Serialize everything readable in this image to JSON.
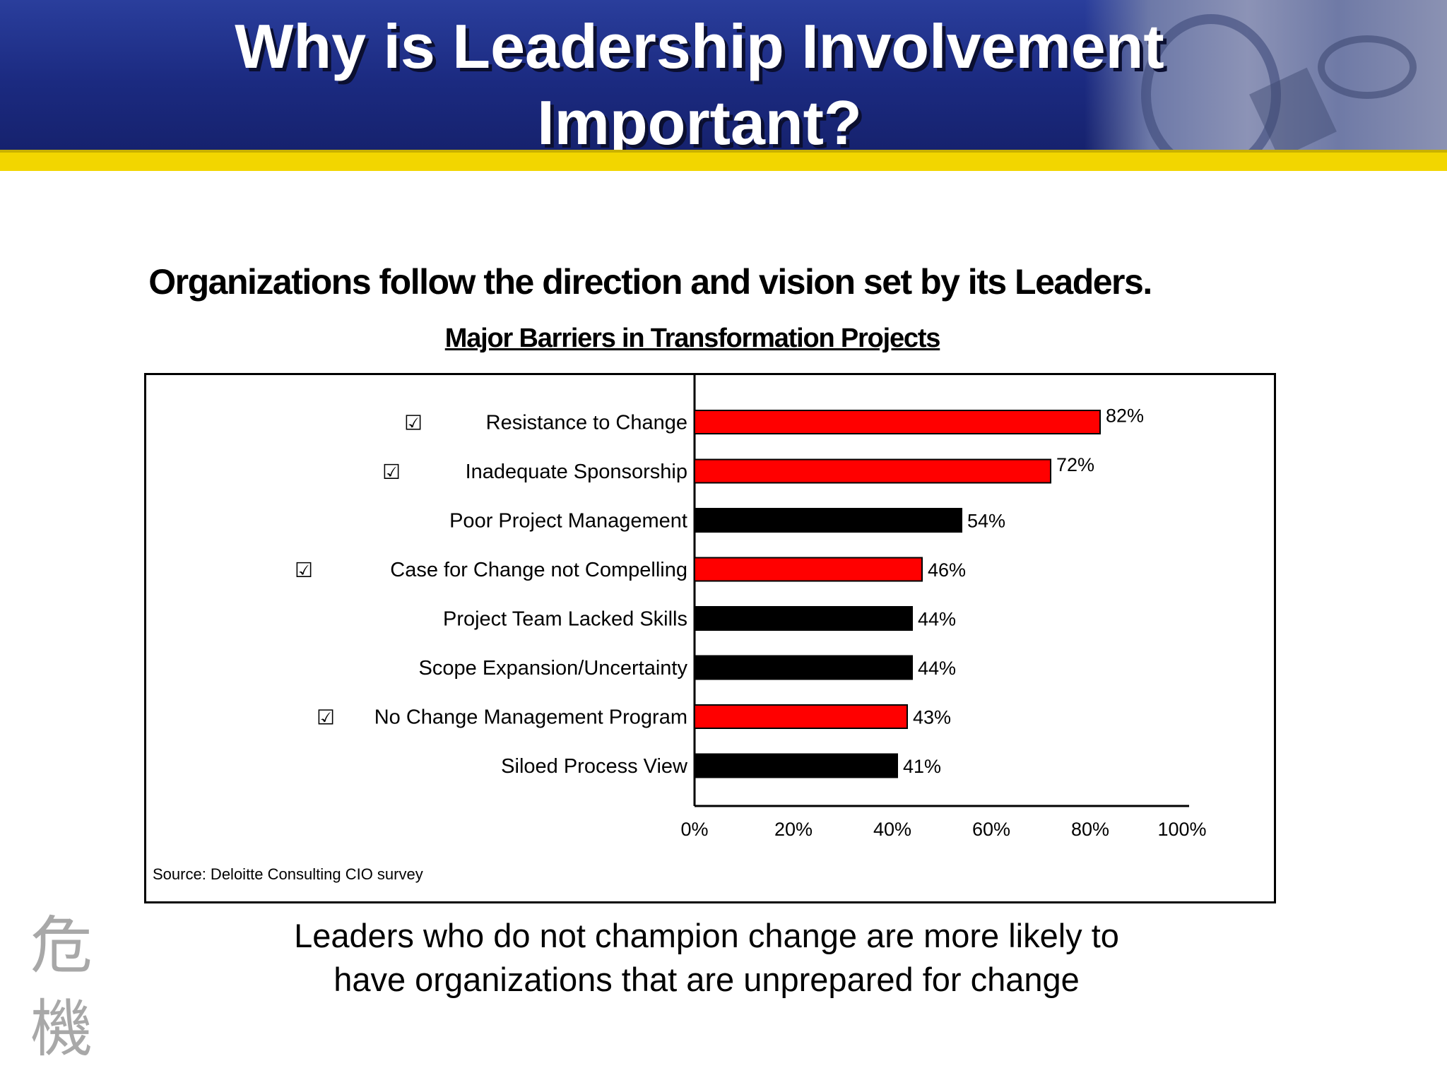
{
  "slide": {
    "title": "Why is Leadership Involvement Important?",
    "subtitle": "Organizations follow the direction and vision set by its Leaders.",
    "source": "Source: Deloitte Consulting CIO survey",
    "conclusion": "Leaders who do not champion change are more likely to have organizations that are unprepared for change",
    "kanji": "危機"
  },
  "colors": {
    "header_blue": "#1b2a80",
    "header_stripe": "#f2d600",
    "highlight_red": "#ff0000",
    "default_black": "#000000",
    "checkbox_red": "#e00000"
  },
  "chart_data": {
    "type": "bar",
    "orientation": "horizontal",
    "title": "Major Barriers in Transformation Projects",
    "categories": [
      "Resistance to Change",
      "Inadequate Sponsorship",
      "Poor Project Management",
      "Case for Change not Compelling",
      "Project Team Lacked Skills",
      "Scope Expansion/Uncertainty",
      "No Change Management Program",
      "Siloed Process View"
    ],
    "values": [
      82,
      72,
      54,
      46,
      44,
      44,
      43,
      41
    ],
    "value_labels": [
      "82%",
      "72%",
      "54%",
      "46%",
      "44%",
      "44%",
      "43%",
      "41%"
    ],
    "highlighted": [
      true,
      true,
      false,
      true,
      false,
      false,
      true,
      false
    ],
    "checkbox_icon": "☑",
    "xlim": [
      0,
      100
    ],
    "ticks": [
      0,
      20,
      40,
      60,
      80,
      100
    ],
    "tick_labels": [
      "0%",
      "20%",
      "40%",
      "60%",
      "80%",
      "100%"
    ],
    "grid": false,
    "legend": "none"
  }
}
